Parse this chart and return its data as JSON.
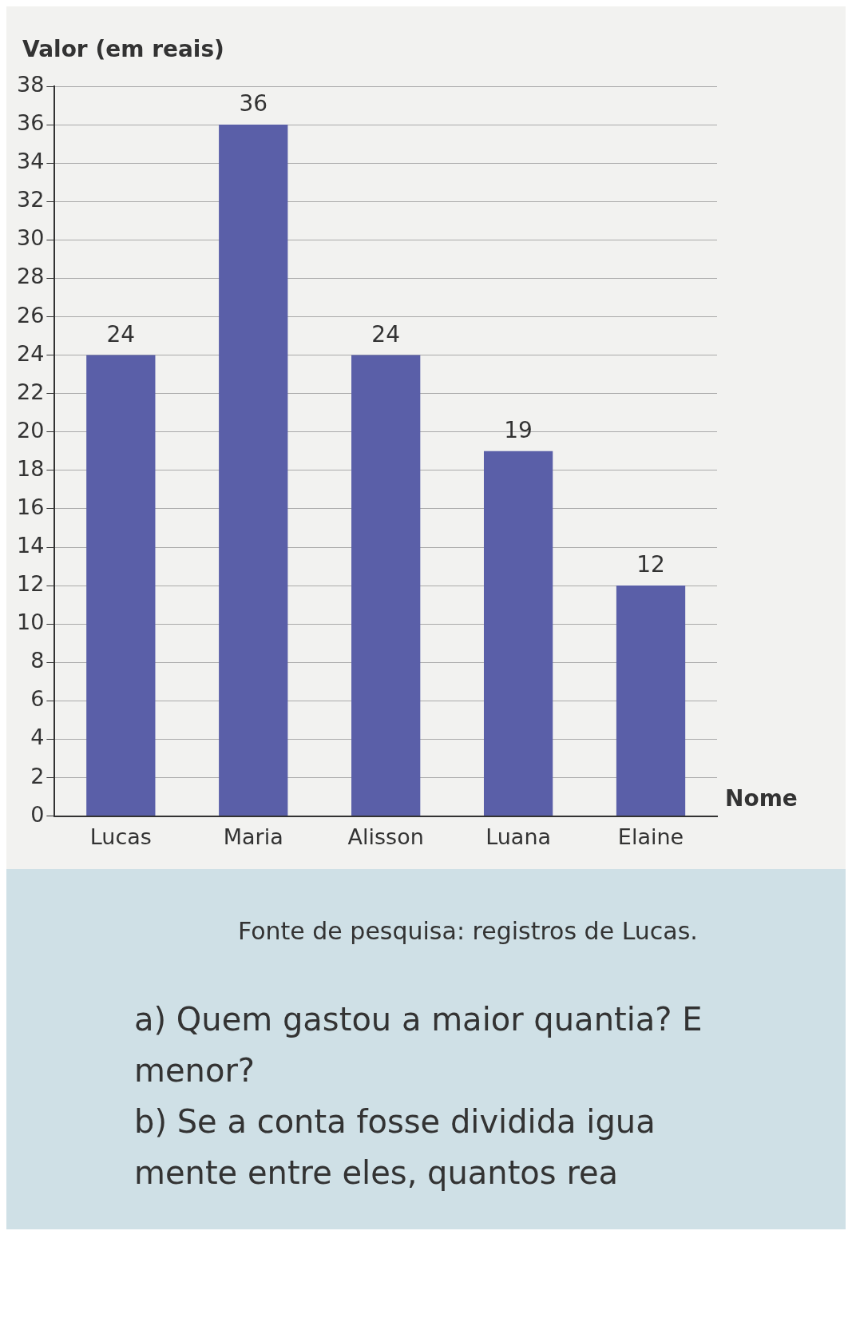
{
  "chart_data": {
    "type": "bar",
    "ylabel": "Valor (em reais)",
    "xlabel": "Nome",
    "categories": [
      "Lucas",
      "Maria",
      "Alisson",
      "Luana",
      "Elaine"
    ],
    "values": [
      24,
      36,
      24,
      19,
      12
    ],
    "color": "#5a5fa8",
    "ylim": [
      0,
      38
    ],
    "yticks": [
      0,
      2,
      4,
      6,
      8,
      10,
      12,
      14,
      16,
      18,
      20,
      22,
      24,
      26,
      28,
      30,
      32,
      34,
      36,
      38
    ],
    "grid": "y",
    "data_labels": true,
    "annotations": [
      "Fonte de pesquisa: registros de Lucas.",
      "a) Quem gastou a maior quantia? E",
      "menor?",
      "b) Se a conta fosse dividida igua",
      "mente entre eles, quantos rea"
    ]
  }
}
